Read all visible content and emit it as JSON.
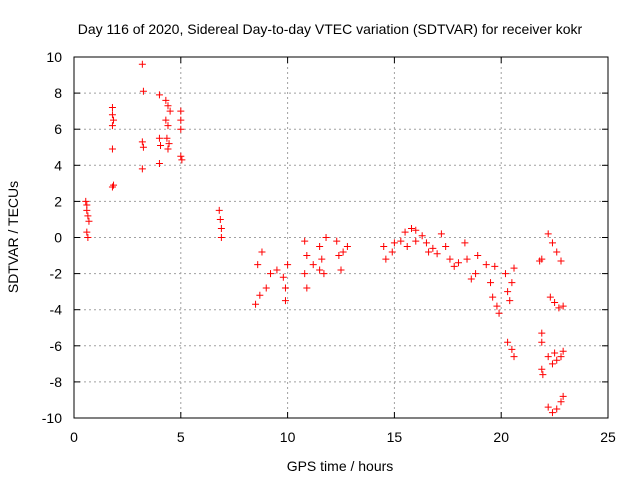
{
  "chart_data": {
    "type": "scatter",
    "title": "Day 116 of 2020, Sidereal Day-to-day VTEC variation (SDTVAR) for receiver kokr",
    "xlabel": "GPS time / hours",
    "ylabel": "SDTVAR / TECUs",
    "xlim": [
      0,
      25
    ],
    "ylim": [
      -10,
      10
    ],
    "xticks": [
      0,
      5,
      10,
      15,
      20,
      25
    ],
    "yticks": [
      -10,
      -8,
      -6,
      -4,
      -2,
      0,
      2,
      4,
      6,
      8,
      10
    ],
    "grid": true,
    "marker": "+",
    "color": "#ff0000",
    "series": [
      {
        "name": "SDTVAR",
        "points": [
          [
            0.55,
            2.0
          ],
          [
            0.6,
            1.8
          ],
          [
            0.6,
            1.5
          ],
          [
            0.65,
            1.2
          ],
          [
            0.7,
            0.9
          ],
          [
            0.6,
            0.3
          ],
          [
            0.65,
            0.0
          ],
          [
            1.8,
            7.2
          ],
          [
            1.8,
            6.8
          ],
          [
            1.85,
            6.5
          ],
          [
            1.8,
            6.2
          ],
          [
            1.8,
            4.9
          ],
          [
            1.85,
            2.9
          ],
          [
            1.8,
            2.8
          ],
          [
            3.2,
            9.6
          ],
          [
            3.25,
            8.1
          ],
          [
            3.2,
            5.3
          ],
          [
            3.25,
            5.0
          ],
          [
            3.2,
            3.8
          ],
          [
            4.0,
            7.9
          ],
          [
            4.0,
            5.5
          ],
          [
            4.05,
            5.1
          ],
          [
            4.0,
            4.1
          ],
          [
            4.3,
            7.6
          ],
          [
            4.4,
            7.3
          ],
          [
            4.5,
            7.0
          ],
          [
            4.3,
            6.5
          ],
          [
            4.4,
            6.2
          ],
          [
            4.35,
            5.5
          ],
          [
            4.45,
            5.2
          ],
          [
            4.4,
            4.9
          ],
          [
            5.0,
            7.0
          ],
          [
            5.0,
            6.5
          ],
          [
            5.0,
            6.0
          ],
          [
            5.0,
            4.5
          ],
          [
            5.05,
            4.3
          ],
          [
            6.8,
            1.5
          ],
          [
            6.85,
            1.0
          ],
          [
            6.9,
            0.5
          ],
          [
            6.9,
            0.0
          ],
          [
            8.5,
            -3.7
          ],
          [
            8.7,
            -3.2
          ],
          [
            9.0,
            -2.8
          ],
          [
            8.6,
            -1.5
          ],
          [
            8.8,
            -0.8
          ],
          [
            9.2,
            -2.0
          ],
          [
            9.5,
            -1.8
          ],
          [
            9.8,
            -2.2
          ],
          [
            9.9,
            -3.5
          ],
          [
            9.9,
            -2.8
          ],
          [
            10.0,
            -1.5
          ],
          [
            10.8,
            -0.2
          ],
          [
            10.9,
            -1.0
          ],
          [
            10.8,
            -2.0
          ],
          [
            10.9,
            -2.8
          ],
          [
            11.2,
            -1.5
          ],
          [
            11.5,
            -0.5
          ],
          [
            11.6,
            -1.2
          ],
          [
            11.7,
            -2.0
          ],
          [
            11.5,
            -1.8
          ],
          [
            11.8,
            0.0
          ],
          [
            12.3,
            -0.2
          ],
          [
            12.4,
            -1.0
          ],
          [
            12.6,
            -0.8
          ],
          [
            12.5,
            -1.8
          ],
          [
            12.8,
            -0.5
          ],
          [
            14.5,
            -0.5
          ],
          [
            14.6,
            -1.2
          ],
          [
            14.9,
            -0.8
          ],
          [
            15.0,
            -0.3
          ],
          [
            15.3,
            -0.2
          ],
          [
            15.5,
            0.3
          ],
          [
            15.8,
            0.5
          ],
          [
            16.0,
            0.4
          ],
          [
            16.3,
            0.1
          ],
          [
            16.5,
            -0.3
          ],
          [
            16.8,
            -0.6
          ],
          [
            15.6,
            -0.5
          ],
          [
            16.0,
            -0.2
          ],
          [
            16.6,
            -0.8
          ],
          [
            17.0,
            -0.9
          ],
          [
            17.2,
            0.2
          ],
          [
            17.4,
            -0.5
          ],
          [
            17.6,
            -1.2
          ],
          [
            17.8,
            -1.6
          ],
          [
            18.0,
            -1.4
          ],
          [
            18.3,
            -0.3
          ],
          [
            18.4,
            -1.2
          ],
          [
            18.6,
            -2.3
          ],
          [
            18.8,
            -2.0
          ],
          [
            18.9,
            -1.0
          ],
          [
            19.3,
            -1.5
          ],
          [
            19.5,
            -2.5
          ],
          [
            19.6,
            -3.3
          ],
          [
            19.8,
            -3.8
          ],
          [
            19.9,
            -4.2
          ],
          [
            19.7,
            -1.6
          ],
          [
            20.2,
            -2.0
          ],
          [
            20.3,
            -3.0
          ],
          [
            20.4,
            -3.5
          ],
          [
            20.5,
            -2.5
          ],
          [
            20.6,
            -1.7
          ],
          [
            20.3,
            -5.8
          ],
          [
            20.5,
            -6.2
          ],
          [
            20.6,
            -6.6
          ],
          [
            21.8,
            -1.3
          ],
          [
            21.9,
            -1.2
          ],
          [
            21.9,
            -5.3
          ],
          [
            21.9,
            -5.8
          ],
          [
            21.9,
            -7.3
          ],
          [
            21.95,
            -7.6
          ],
          [
            22.2,
            0.2
          ],
          [
            22.4,
            -0.3
          ],
          [
            22.6,
            -0.8
          ],
          [
            22.8,
            -1.3
          ],
          [
            22.3,
            -3.3
          ],
          [
            22.5,
            -3.6
          ],
          [
            22.7,
            -3.9
          ],
          [
            22.9,
            -3.8
          ],
          [
            22.2,
            -6.6
          ],
          [
            22.4,
            -7.0
          ],
          [
            22.6,
            -6.8
          ],
          [
            22.8,
            -6.6
          ],
          [
            22.9,
            -6.3
          ],
          [
            22.5,
            -6.4
          ],
          [
            22.2,
            -9.4
          ],
          [
            22.4,
            -9.7
          ],
          [
            22.6,
            -9.5
          ],
          [
            22.8,
            -9.1
          ],
          [
            22.9,
            -8.8
          ]
        ]
      }
    ]
  }
}
